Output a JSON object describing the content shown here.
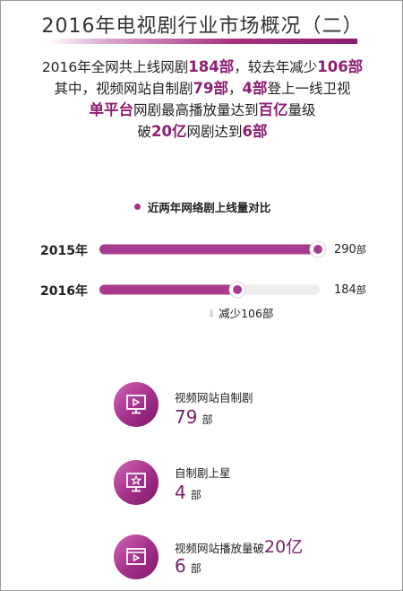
{
  "title": "2016年电视剧行业市场概况（二）",
  "summary": [
    [
      {
        "t": "2016年全网共上线网剧"
      },
      {
        "t": "184部",
        "h": true
      },
      {
        "t": "，较去年减少"
      },
      {
        "t": "106部",
        "h": true
      }
    ],
    [
      {
        "t": "其中，视频网站自制剧"
      },
      {
        "t": "79部",
        "h": true
      },
      {
        "t": "，"
      },
      {
        "t": "4部",
        "h": true
      },
      {
        "t": "登上一线卫视"
      }
    ],
    [
      {
        "t": "单平台",
        "h": true
      },
      {
        "t": "网剧最高播放量达到"
      },
      {
        "t": "百亿",
        "h": true
      },
      {
        "t": "量级"
      }
    ],
    [
      {
        "t": "破"
      },
      {
        "t": "20亿",
        "h": true
      },
      {
        "t": "网剧达到"
      },
      {
        "t": "6部",
        "h": true
      }
    ]
  ],
  "chart_data": {
    "type": "bar",
    "orientation": "horizontal",
    "title": "近两年网络剧上线量对比",
    "categories": [
      "2015年",
      "2016年"
    ],
    "values": [
      290,
      184
    ],
    "value_labels": [
      "290",
      "184"
    ],
    "unit": "部",
    "xlim": [
      0,
      290
    ],
    "difference_label": "减少106部",
    "colors": {
      "bar": "#a93b8f",
      "track": "#eeeeee",
      "knob": "#a93b8f"
    }
  },
  "cards": [
    {
      "label": "视频网站自制剧",
      "value": "79",
      "unit": "部",
      "icon": "video-screen-icon"
    },
    {
      "label": "自制剧上星",
      "value": "4",
      "unit": "部",
      "icon": "tv-star-icon"
    },
    {
      "label_prefix": "视频网站播放量破",
      "label_big": "20亿",
      "value": "6",
      "unit": "部",
      "icon": "browser-play-icon"
    }
  ]
}
